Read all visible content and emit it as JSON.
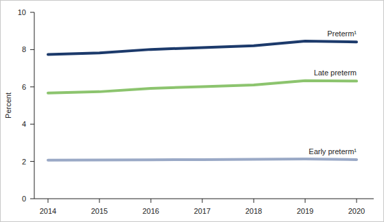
{
  "chart_data": {
    "type": "line",
    "y_label": "Percent",
    "categories": [
      "2014",
      "2015",
      "2016",
      "2017",
      "2018",
      "2019",
      "2020"
    ],
    "series": [
      {
        "name": "Preterm¹",
        "color": "#1c3a6b",
        "values": [
          7.74,
          7.82,
          8.01,
          8.11,
          8.21,
          8.46,
          8.41
        ]
      },
      {
        "name": "Late preterm",
        "color": "#8cc46e",
        "values": [
          5.67,
          5.74,
          5.92,
          6.01,
          6.1,
          6.33,
          6.31
        ]
      },
      {
        "name": "Early preterm¹",
        "color": "#9aa9c6",
        "values": [
          2.07,
          2.08,
          2.09,
          2.1,
          2.11,
          2.13,
          2.1
        ]
      }
    ],
    "ylim": [
      0,
      10
    ],
    "yticks": [
      0,
      2,
      4,
      6,
      8,
      10
    ],
    "grid": false
  }
}
